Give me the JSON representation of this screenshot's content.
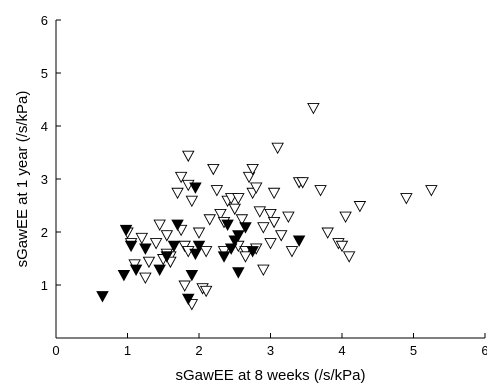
{
  "chart_data": {
    "type": "scatter",
    "xlabel": "sGawEE at 8 weeks (/s/kPa)",
    "ylabel": "sGawEE at 1 year (/s/kPa)",
    "xlim": [
      0,
      6
    ],
    "ylim": [
      0,
      6
    ],
    "x_ticks": [
      "0",
      "1",
      "2",
      "3",
      "4",
      "5",
      "6"
    ],
    "y_ticks": [
      "1",
      "2",
      "3",
      "4",
      "5",
      "6"
    ],
    "marker": "triangle-down",
    "series": [
      {
        "style": "open",
        "points": [
          [
            1.0,
            2.0
          ],
          [
            1.05,
            1.8
          ],
          [
            1.1,
            1.4
          ],
          [
            1.2,
            1.9
          ],
          [
            1.25,
            1.15
          ],
          [
            1.3,
            1.45
          ],
          [
            1.4,
            1.8
          ],
          [
            1.45,
            2.15
          ],
          [
            1.5,
            1.5
          ],
          [
            1.55,
            1.95
          ],
          [
            1.55,
            1.6
          ],
          [
            1.6,
            1.55
          ],
          [
            1.6,
            1.45
          ],
          [
            1.7,
            2.75
          ],
          [
            1.75,
            3.05
          ],
          [
            1.75,
            2.05
          ],
          [
            1.8,
            1.0
          ],
          [
            1.8,
            1.75
          ],
          [
            1.85,
            3.45
          ],
          [
            1.85,
            2.9
          ],
          [
            1.85,
            1.65
          ],
          [
            1.9,
            0.65
          ],
          [
            1.9,
            2.6
          ],
          [
            2.0,
            2.0
          ],
          [
            2.05,
            0.95
          ],
          [
            2.1,
            0.9
          ],
          [
            2.1,
            1.65
          ],
          [
            2.15,
            2.25
          ],
          [
            2.2,
            3.2
          ],
          [
            2.25,
            2.8
          ],
          [
            2.3,
            2.35
          ],
          [
            2.35,
            2.2
          ],
          [
            2.35,
            1.65
          ],
          [
            2.4,
            2.6
          ],
          [
            2.45,
            2.65
          ],
          [
            2.5,
            2.45
          ],
          [
            2.55,
            2.65
          ],
          [
            2.55,
            1.75
          ],
          [
            2.6,
            2.25
          ],
          [
            2.65,
            1.65
          ],
          [
            2.65,
            1.55
          ],
          [
            2.7,
            3.05
          ],
          [
            2.75,
            3.2
          ],
          [
            2.75,
            2.75
          ],
          [
            2.8,
            2.85
          ],
          [
            2.8,
            1.7
          ],
          [
            2.85,
            2.4
          ],
          [
            2.9,
            1.3
          ],
          [
            2.9,
            2.1
          ],
          [
            3.0,
            1.8
          ],
          [
            3.0,
            2.35
          ],
          [
            3.05,
            2.2
          ],
          [
            3.05,
            2.75
          ],
          [
            3.1,
            3.6
          ],
          [
            3.15,
            1.95
          ],
          [
            3.25,
            2.3
          ],
          [
            3.3,
            1.65
          ],
          [
            3.4,
            2.95
          ],
          [
            3.45,
            2.95
          ],
          [
            3.6,
            4.35
          ],
          [
            3.7,
            2.8
          ],
          [
            3.8,
            2.0
          ],
          [
            3.95,
            1.8
          ],
          [
            4.0,
            1.75
          ],
          [
            4.05,
            2.3
          ],
          [
            4.1,
            1.55
          ],
          [
            4.25,
            2.5
          ],
          [
            4.9,
            2.65
          ],
          [
            5.25,
            2.8
          ]
        ]
      },
      {
        "style": "filled",
        "points": [
          [
            0.65,
            0.8
          ],
          [
            0.95,
            1.2
          ],
          [
            0.98,
            2.05
          ],
          [
            1.05,
            1.75
          ],
          [
            1.12,
            1.3
          ],
          [
            1.25,
            1.7
          ],
          [
            1.45,
            1.3
          ],
          [
            1.55,
            1.55
          ],
          [
            1.65,
            1.75
          ],
          [
            1.7,
            2.15
          ],
          [
            1.85,
            0.75
          ],
          [
            1.9,
            1.2
          ],
          [
            1.95,
            1.6
          ],
          [
            1.95,
            2.85
          ],
          [
            2.0,
            1.75
          ],
          [
            2.35,
            1.55
          ],
          [
            2.4,
            2.15
          ],
          [
            2.45,
            1.7
          ],
          [
            2.5,
            1.85
          ],
          [
            2.55,
            1.25
          ],
          [
            2.55,
            1.95
          ],
          [
            2.65,
            2.1
          ],
          [
            2.75,
            1.65
          ],
          [
            3.4,
            1.85
          ]
        ]
      }
    ]
  }
}
